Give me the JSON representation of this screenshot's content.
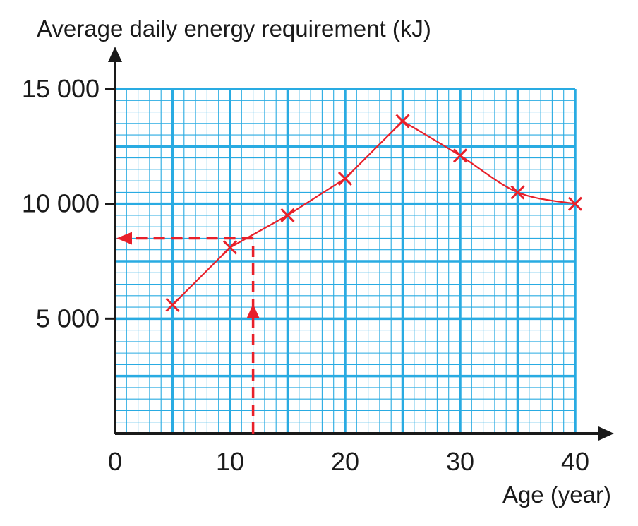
{
  "chart_data": {
    "type": "line",
    "xlabel": "Age (year)",
    "ylabel": "Average daily energy requirement (kJ)",
    "xlim": [
      0,
      40
    ],
    "ylim": [
      0,
      15000
    ],
    "x_ticks": [
      {
        "value": 0,
        "label": "0"
      },
      {
        "value": 10,
        "label": "10"
      },
      {
        "value": 20,
        "label": "20"
      },
      {
        "value": 30,
        "label": "30"
      },
      {
        "value": 40,
        "label": "40"
      }
    ],
    "y_ticks": [
      {
        "value": 5000,
        "label": "5 000"
      },
      {
        "value": 10000,
        "label": "10 000"
      },
      {
        "value": 15000,
        "label": "15 000"
      }
    ],
    "grid": {
      "major_x": 5,
      "major_y": 2500,
      "minor_x": 1,
      "minor_y": 500
    },
    "series": [
      {
        "points": [
          {
            "x": 5,
            "y": 5600
          },
          {
            "x": 10,
            "y": 8100
          },
          {
            "x": 15,
            "y": 9500
          },
          {
            "x": 20,
            "y": 11100
          },
          {
            "x": 25,
            "y": 13600
          },
          {
            "x": 30,
            "y": 12100
          },
          {
            "x": 35,
            "y": 10500
          },
          {
            "x": 40,
            "y": 10000
          }
        ]
      }
    ],
    "reading_guide": {
      "x": 12,
      "y": 8500
    },
    "colors": {
      "grid": "#29ABE2",
      "data": "#E8202A",
      "axis": "#1a1a1a"
    }
  }
}
